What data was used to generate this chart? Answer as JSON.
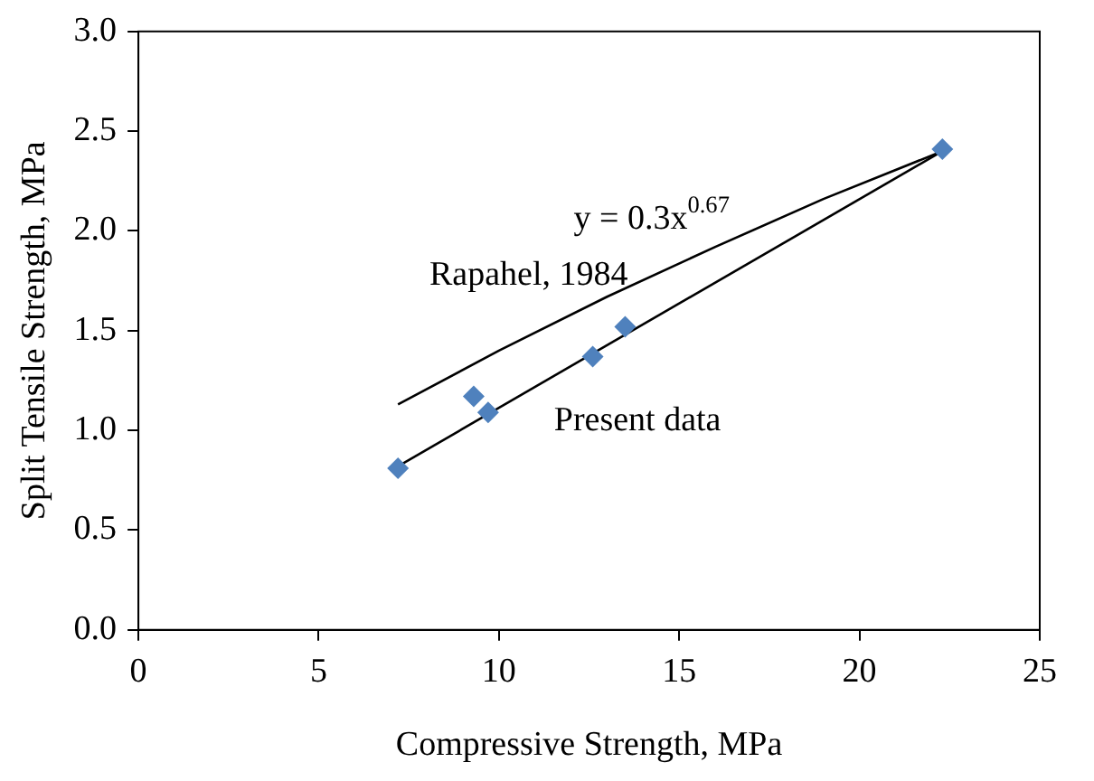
{
  "chart_data": {
    "type": "scatter",
    "xlabel": "Compressive Strength, MPa",
    "ylabel": "Split Tensile Strength, MPa",
    "xlim": [
      0,
      25
    ],
    "xticks": [
      0,
      5,
      10,
      15,
      20,
      25
    ],
    "ylim": [
      0,
      3
    ],
    "yticks": [
      {
        "value": 0,
        "label": "0.0"
      },
      {
        "value": 0.5,
        "label": "0.5"
      },
      {
        "value": 1,
        "label": "1.0"
      },
      {
        "value": 1.5,
        "label": "1.5"
      },
      {
        "value": 2,
        "label": "2.0"
      },
      {
        "value": 2.5,
        "label": "2.5"
      },
      {
        "value": 3,
        "label": "3.0"
      }
    ],
    "grid": false,
    "legend": false,
    "marker": "diamond",
    "series": [
      {
        "color": "#4f81bd",
        "x": [
          7.2,
          9.3,
          9.7,
          12.6,
          13.5,
          22.3
        ],
        "values": [
          0.81,
          1.17,
          1.09,
          1.37,
          1.52,
          2.41
        ]
      },
      {
        "type": "line",
        "name": "Rapahel, 1984",
        "color": "#000000",
        "x": [
          7.2,
          10,
          13,
          16,
          19,
          22.3
        ],
        "values": [
          1.13,
          1.4,
          1.67,
          1.92,
          2.16,
          2.4
        ],
        "marker": "none"
      },
      {
        "type": "line",
        "name": "Present data",
        "color": "#000000",
        "x": [
          7.2,
          22.3
        ],
        "values": [
          0.82,
          2.4
        ],
        "marker": "none"
      }
    ],
    "annotations": [
      "y = 0.3x$^{0.67}$"
    ]
  }
}
